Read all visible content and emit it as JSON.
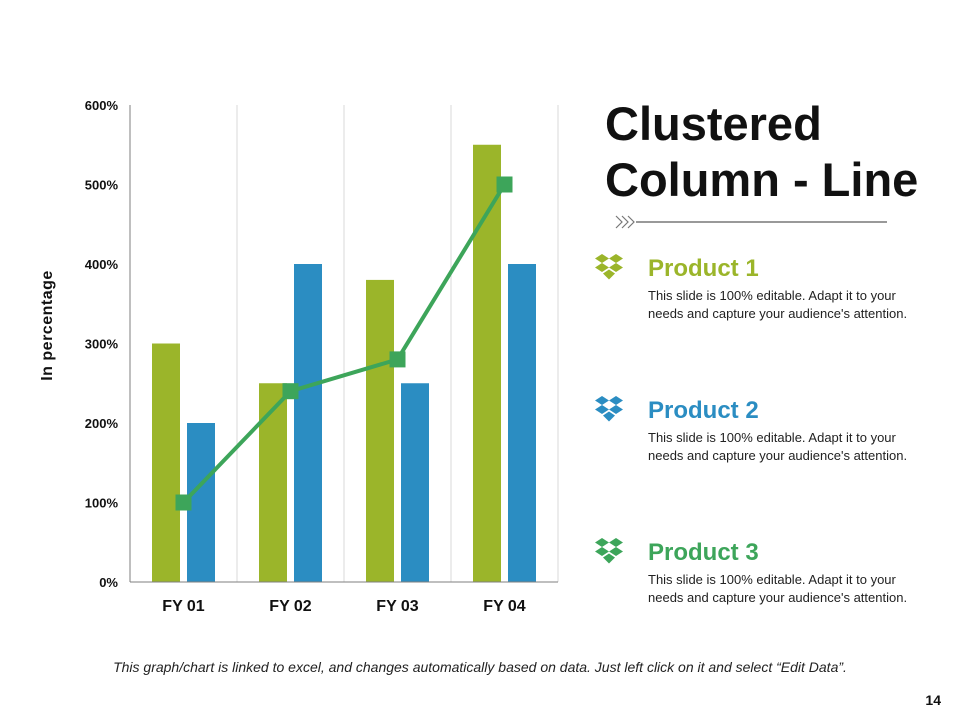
{
  "chart_data": {
    "type": "bar",
    "subtype": "clustered column with line overlay",
    "categories": [
      "FY 01",
      "FY 02",
      "FY 03",
      "FY 04"
    ],
    "series": [
      {
        "name": "Product 1",
        "kind": "bar",
        "color": "#9BB52A",
        "values": [
          300,
          250,
          380,
          550
        ]
      },
      {
        "name": "Product 2",
        "kind": "bar",
        "color": "#2B8DC2",
        "values": [
          200,
          400,
          250,
          400
        ]
      },
      {
        "name": "Product 3",
        "kind": "line",
        "color": "#3DA55A",
        "values": [
          100,
          240,
          280,
          500
        ]
      }
    ],
    "ylabel": "In percentage",
    "xlabel": "",
    "ylim": [
      0,
      600
    ],
    "yticks": [
      0,
      100,
      200,
      300,
      400,
      500,
      600
    ],
    "ytick_labels": [
      "0%",
      "100%",
      "200%",
      "300%",
      "400%",
      "500%",
      "600%"
    ],
    "grid": "vertical category separators",
    "legend": "right side panel"
  },
  "title_lines": [
    "Clustered",
    "Column - Line"
  ],
  "products": [
    {
      "name": "Product 1",
      "color": "#9BB52A",
      "icon": "dropbox-icon",
      "description": "This slide is 100% editable. Adapt it to your needs and capture your audience's attention."
    },
    {
      "name": "Product 2",
      "color": "#2B8DC2",
      "icon": "dropbox-icon",
      "description": "This slide is 100% editable. Adapt it to your needs and capture your audience's attention."
    },
    {
      "name": "Product 3",
      "color": "#3DA55A",
      "icon": "dropbox-icon",
      "description": "This slide is 100% editable. Adapt it to your needs and capture your audience's attention."
    }
  ],
  "footer_note": "This graph/chart is linked to excel, and changes automatically based on data. Just left click on it and select “Edit Data”.",
  "page_number": "14"
}
